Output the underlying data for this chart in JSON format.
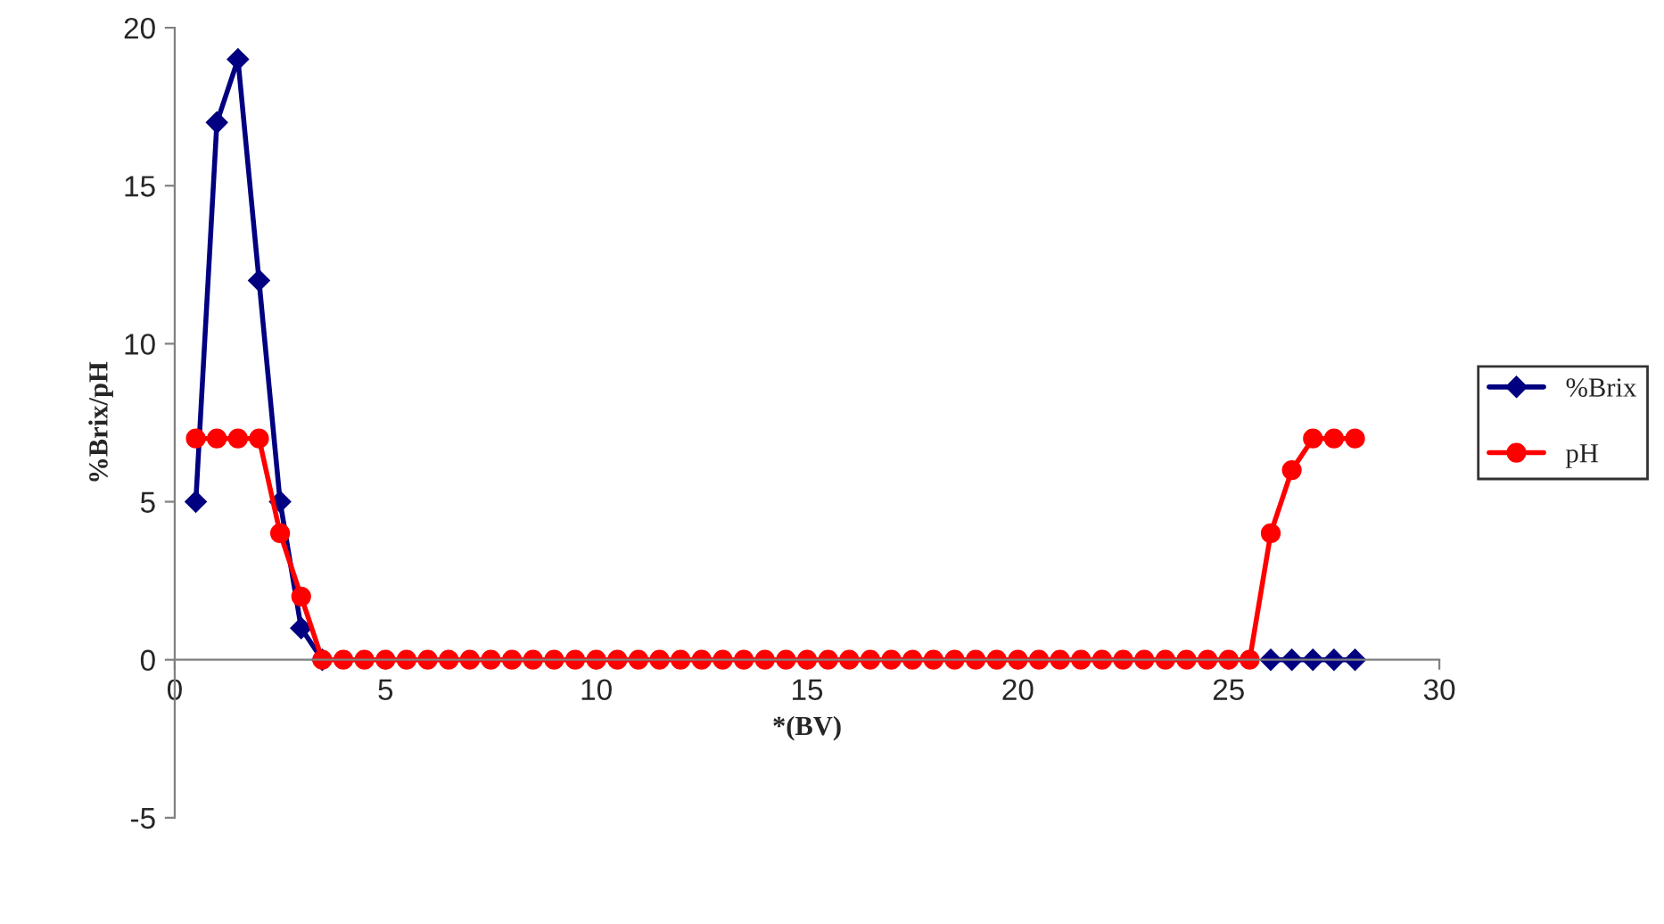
{
  "chart_data": {
    "type": "line",
    "xlabel": "*(BV)",
    "ylabel": "%Brix/pH",
    "x": [
      0.5,
      1,
      1.5,
      2,
      2.5,
      3,
      3.5,
      4,
      4.5,
      5,
      5.5,
      6,
      6.5,
      7,
      7.5,
      8,
      8.5,
      9,
      9.5,
      10,
      10.5,
      11,
      11.5,
      12,
      12.5,
      13,
      13.5,
      14,
      14.5,
      15,
      15.5,
      16,
      16.5,
      17,
      17.5,
      18,
      18.5,
      19,
      19.5,
      20,
      20.5,
      21,
      21.5,
      22,
      22.5,
      23,
      23.5,
      24,
      24.5,
      25,
      25.5,
      26,
      26.5,
      27,
      27.5,
      28
    ],
    "series": [
      {
        "name": "%Brix",
        "color": "#000080",
        "marker": "diamond",
        "values": [
          5,
          17,
          19,
          12,
          5,
          1,
          0,
          null,
          null,
          null,
          null,
          null,
          null,
          null,
          null,
          null,
          null,
          null,
          null,
          null,
          null,
          null,
          null,
          null,
          null,
          null,
          null,
          null,
          null,
          null,
          null,
          null,
          null,
          null,
          null,
          null,
          null,
          null,
          null,
          null,
          null,
          null,
          null,
          null,
          null,
          null,
          null,
          null,
          null,
          null,
          null,
          0,
          0,
          0,
          0,
          0
        ]
      },
      {
        "name": "pH",
        "color": "#ff0000",
        "marker": "circle",
        "values": [
          7,
          7,
          7,
          7,
          4,
          2,
          0,
          0,
          0,
          0,
          0,
          0,
          0,
          0,
          0,
          0,
          0,
          0,
          0,
          0,
          0,
          0,
          0,
          0,
          0,
          0,
          0,
          0,
          0,
          0,
          0,
          0,
          0,
          0,
          0,
          0,
          0,
          0,
          0,
          0,
          0,
          0,
          0,
          0,
          0,
          0,
          0,
          0,
          0,
          0,
          0,
          4,
          6,
          7,
          7,
          7
        ]
      }
    ],
    "xlim": [
      0,
      30
    ],
    "xticks": [
      0,
      5,
      10,
      15,
      20,
      25,
      30
    ],
    "ylim": [
      -5,
      20
    ],
    "yticks": [
      -5,
      0,
      5,
      10,
      15,
      20
    ],
    "grid": false,
    "legend": "right"
  }
}
